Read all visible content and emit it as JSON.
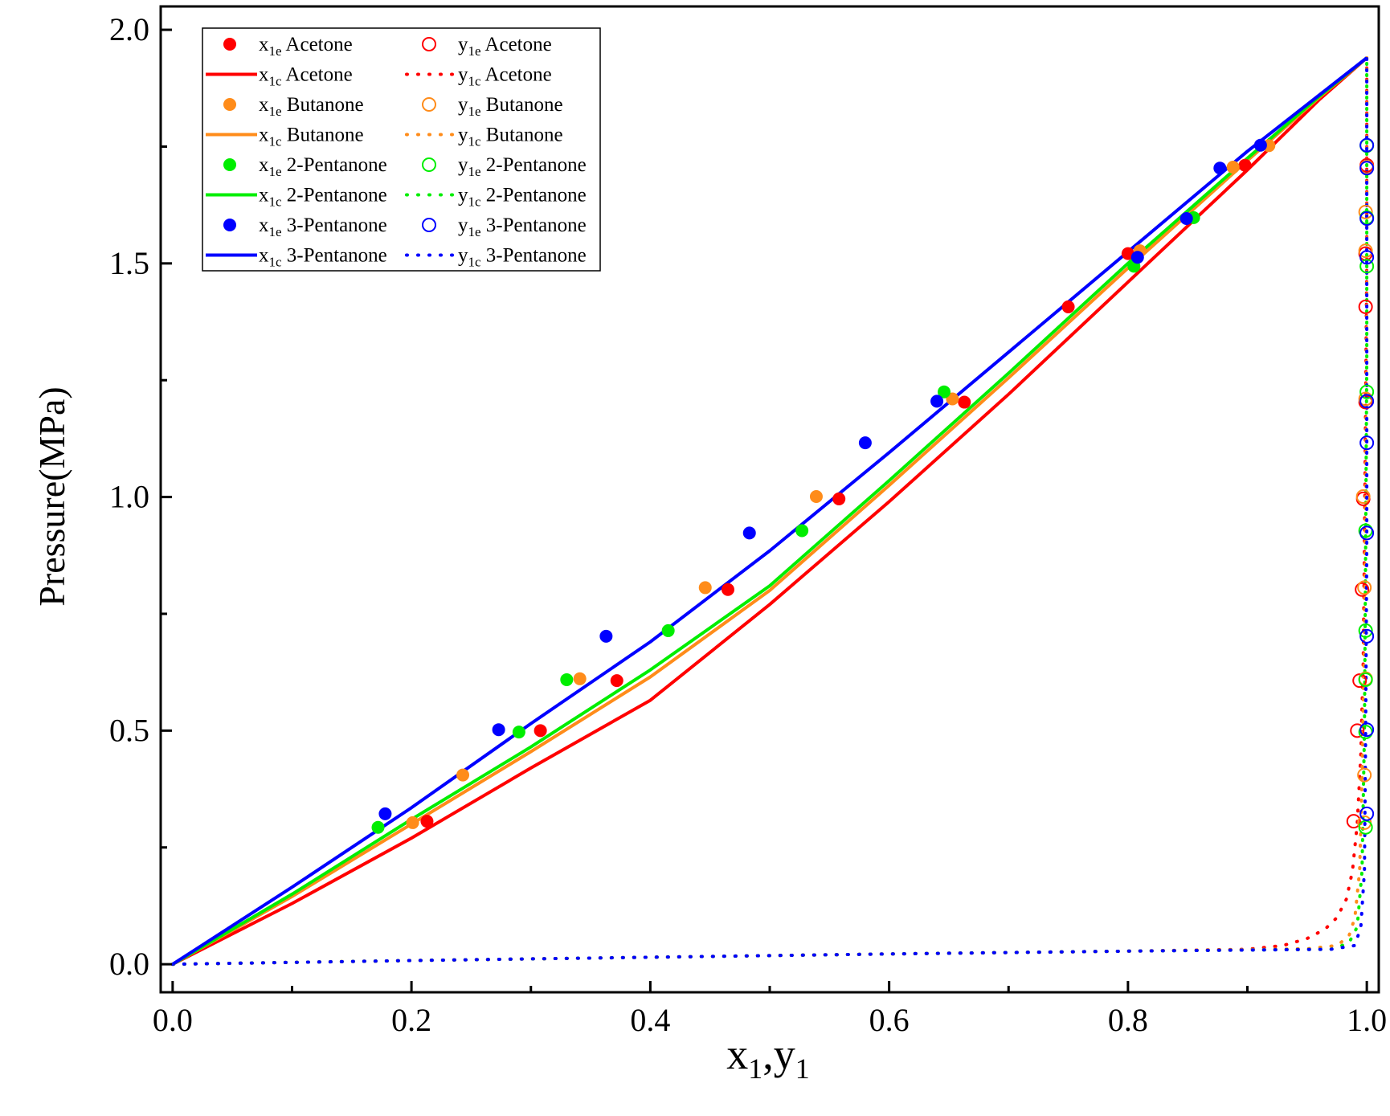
{
  "chart_data": {
    "type": "scatter",
    "title": "",
    "xlabel": {
      "main": "x",
      "sub1": "1",
      "sep": ",y",
      "sub2": "1"
    },
    "ylabel": "Pressure(MPa)",
    "xlim": [
      -0.01,
      1.01
    ],
    "ylim": [
      -0.06,
      2.05
    ],
    "xticks": [
      0.0,
      0.2,
      0.4,
      0.6,
      0.8,
      1.0
    ],
    "xtick_labels": [
      "0.0",
      "0.2",
      "0.4",
      "0.6",
      "0.8",
      "1.0"
    ],
    "yticks": [
      0.0,
      0.5,
      1.0,
      1.5,
      2.0
    ],
    "ytick_labels": [
      "0.0",
      "0.5",
      "1.0",
      "1.5",
      "2.0"
    ],
    "grid": false,
    "legend_position": "top-left",
    "colors": {
      "Acetone": "#ff0000",
      "Butanone": "#ff8c1a",
      "2-Pentanone": "#00ee00",
      "3-Pentanone": "#0000ff"
    },
    "legend": [
      {
        "col": 0,
        "row": 0,
        "marker": "filled",
        "var": "x",
        "sub": "1e",
        "label": "Acetone",
        "color": "#ff0000"
      },
      {
        "col": 0,
        "row": 1,
        "marker": "solid",
        "var": "x",
        "sub": "1c",
        "label": "Acetone",
        "color": "#ff0000"
      },
      {
        "col": 0,
        "row": 2,
        "marker": "filled",
        "var": "x",
        "sub": "1e",
        "label": "Butanone",
        "color": "#ff8c1a"
      },
      {
        "col": 0,
        "row": 3,
        "marker": "solid",
        "var": "x",
        "sub": "1c",
        "label": "Butanone",
        "color": "#ff8c1a"
      },
      {
        "col": 0,
        "row": 4,
        "marker": "filled",
        "var": "x",
        "sub": "1e",
        "label": "2-Pentanone",
        "color": "#00ee00"
      },
      {
        "col": 0,
        "row": 5,
        "marker": "solid",
        "var": "x",
        "sub": "1c",
        "label": "2-Pentanone",
        "color": "#00ee00"
      },
      {
        "col": 0,
        "row": 6,
        "marker": "filled",
        "var": "x",
        "sub": "1e",
        "label": "3-Pentanone",
        "color": "#0000ff"
      },
      {
        "col": 0,
        "row": 7,
        "marker": "solid",
        "var": "x",
        "sub": "1c",
        "label": "3-Pentanone",
        "color": "#0000ff"
      },
      {
        "col": 1,
        "row": 0,
        "marker": "open",
        "var": "y",
        "sub": "1e",
        "label": "Acetone",
        "color": "#ff0000"
      },
      {
        "col": 1,
        "row": 1,
        "marker": "dot",
        "var": "y",
        "sub": "1c",
        "label": "Acetone",
        "color": "#ff0000"
      },
      {
        "col": 1,
        "row": 2,
        "marker": "open",
        "var": "y",
        "sub": "1e",
        "label": "Butanone",
        "color": "#ff8c1a"
      },
      {
        "col": 1,
        "row": 3,
        "marker": "dot",
        "var": "y",
        "sub": "1c",
        "label": "Butanone",
        "color": "#ff8c1a"
      },
      {
        "col": 1,
        "row": 4,
        "marker": "open",
        "var": "y",
        "sub": "1e",
        "label": "2-Pentanone",
        "color": "#00ee00"
      },
      {
        "col": 1,
        "row": 5,
        "marker": "dot",
        "var": "y",
        "sub": "1c",
        "label": "2-Pentanone",
        "color": "#00ee00"
      },
      {
        "col": 1,
        "row": 6,
        "marker": "open",
        "var": "y",
        "sub": "1e",
        "label": "3-Pentanone",
        "color": "#0000ff"
      },
      {
        "col": 1,
        "row": 7,
        "marker": "dot",
        "var": "y",
        "sub": "1c",
        "label": "3-Pentanone",
        "color": "#0000ff"
      }
    ],
    "series": [
      {
        "name": "x1e Acetone",
        "kind": "filled",
        "color": "#ff0000",
        "points": [
          [
            0.213,
            0.306
          ],
          [
            0.308,
            0.5
          ],
          [
            0.372,
            0.607
          ],
          [
            0.465,
            0.802
          ],
          [
            0.558,
            0.996
          ],
          [
            0.663,
            1.203
          ],
          [
            0.75,
            1.407
          ],
          [
            0.8,
            1.521
          ],
          [
            0.898,
            1.71
          ]
        ]
      },
      {
        "name": "x1e Butanone",
        "kind": "filled",
        "color": "#ff8c1a",
        "points": [
          [
            0.201,
            0.303
          ],
          [
            0.243,
            0.405
          ],
          [
            0.341,
            0.611
          ],
          [
            0.446,
            0.806
          ],
          [
            0.539,
            1.001
          ],
          [
            0.653,
            1.21
          ],
          [
            0.81,
            1.527
          ],
          [
            0.888,
            1.706
          ],
          [
            0.918,
            1.752
          ]
        ]
      },
      {
        "name": "x1e 2-Pentanone",
        "kind": "filled",
        "color": "#00ee00",
        "points": [
          [
            0.172,
            0.293
          ],
          [
            0.29,
            0.497
          ],
          [
            0.33,
            0.609
          ],
          [
            0.415,
            0.714
          ],
          [
            0.527,
            0.928
          ],
          [
            0.646,
            1.225
          ],
          [
            0.805,
            1.494
          ],
          [
            0.855,
            1.598
          ]
        ]
      },
      {
        "name": "x1e 3-Pentanone",
        "kind": "filled",
        "color": "#0000ff",
        "points": [
          [
            0.178,
            0.322
          ],
          [
            0.273,
            0.502
          ],
          [
            0.363,
            0.702
          ],
          [
            0.483,
            0.923
          ],
          [
            0.58,
            1.116
          ],
          [
            0.64,
            1.205
          ],
          [
            0.808,
            1.513
          ],
          [
            0.849,
            1.596
          ],
          [
            0.877,
            1.704
          ],
          [
            0.911,
            1.753
          ]
        ]
      },
      {
        "name": "y1e Acetone",
        "kind": "open",
        "color": "#ff0000",
        "points": [
          [
            0.989,
            0.306
          ],
          [
            0.992,
            0.5
          ],
          [
            0.994,
            0.607
          ],
          [
            0.996,
            0.802
          ],
          [
            0.997,
            0.996
          ],
          [
            0.999,
            1.203
          ],
          [
            0.999,
            1.407
          ],
          [
            0.999,
            1.521
          ],
          [
            1.0,
            1.71
          ]
        ]
      },
      {
        "name": "y1e Butanone",
        "kind": "open",
        "color": "#ff8c1a",
        "points": [
          [
            0.998,
            0.303
          ],
          [
            0.998,
            0.405
          ],
          [
            0.999,
            0.611
          ],
          [
            0.998,
            0.806
          ],
          [
            0.997,
            1.001
          ],
          [
            0.999,
            1.21
          ],
          [
            0.999,
            1.527
          ],
          [
            0.999,
            1.61
          ],
          [
            1.0,
            1.706
          ]
        ]
      },
      {
        "name": "y1e 2-Pentanone",
        "kind": "open",
        "color": "#00ee00",
        "points": [
          [
            0.999,
            0.293
          ],
          [
            0.999,
            0.497
          ],
          [
            0.999,
            0.609
          ],
          [
            0.999,
            0.714
          ],
          [
            0.999,
            0.928
          ],
          [
            1.0,
            1.225
          ],
          [
            1.0,
            1.494
          ],
          [
            1.0,
            1.598
          ],
          [
            1.0,
            1.752
          ]
        ]
      },
      {
        "name": "y1e 3-Pentanone",
        "kind": "open",
        "color": "#0000ff",
        "points": [
          [
            1.0,
            0.322
          ],
          [
            1.0,
            0.502
          ],
          [
            1.0,
            0.702
          ],
          [
            1.0,
            0.923
          ],
          [
            1.0,
            1.116
          ],
          [
            1.0,
            1.205
          ],
          [
            1.0,
            1.513
          ],
          [
            1.0,
            1.596
          ],
          [
            1.0,
            1.704
          ],
          [
            1.0,
            1.753
          ]
        ]
      },
      {
        "name": "x1c Acetone",
        "kind": "solid",
        "color": "#ff0000",
        "points": [
          [
            0.0,
            0.0
          ],
          [
            0.1,
            0.13
          ],
          [
            0.2,
            0.27
          ],
          [
            0.3,
            0.42
          ],
          [
            0.4,
            0.565
          ],
          [
            0.5,
            0.77
          ],
          [
            0.6,
            0.99
          ],
          [
            0.7,
            1.22
          ],
          [
            0.8,
            1.46
          ],
          [
            0.9,
            1.7
          ],
          [
            0.96,
            1.85
          ],
          [
            1.0,
            1.94
          ]
        ]
      },
      {
        "name": "x1c Butanone",
        "kind": "solid",
        "color": "#ff8c1a",
        "points": [
          [
            0.0,
            0.0
          ],
          [
            0.1,
            0.145
          ],
          [
            0.2,
            0.3
          ],
          [
            0.3,
            0.455
          ],
          [
            0.4,
            0.615
          ],
          [
            0.5,
            0.8
          ],
          [
            0.6,
            1.025
          ],
          [
            0.7,
            1.255
          ],
          [
            0.8,
            1.49
          ],
          [
            0.9,
            1.72
          ],
          [
            0.96,
            1.855
          ],
          [
            1.0,
            1.94
          ]
        ]
      },
      {
        "name": "x1c 2-Pentanone",
        "kind": "solid",
        "color": "#00ee00",
        "points": [
          [
            0.0,
            0.0
          ],
          [
            0.1,
            0.15
          ],
          [
            0.2,
            0.31
          ],
          [
            0.3,
            0.465
          ],
          [
            0.4,
            0.63
          ],
          [
            0.5,
            0.81
          ],
          [
            0.6,
            1.035
          ],
          [
            0.7,
            1.265
          ],
          [
            0.8,
            1.5
          ],
          [
            0.9,
            1.725
          ],
          [
            0.96,
            1.857
          ],
          [
            1.0,
            1.94
          ]
        ]
      },
      {
        "name": "x1c 3-Pentanone",
        "kind": "solid",
        "color": "#0000ff",
        "points": [
          [
            0.0,
            0.0
          ],
          [
            0.1,
            0.165
          ],
          [
            0.2,
            0.335
          ],
          [
            0.3,
            0.515
          ],
          [
            0.4,
            0.69
          ],
          [
            0.5,
            0.885
          ],
          [
            0.6,
            1.095
          ],
          [
            0.7,
            1.31
          ],
          [
            0.8,
            1.525
          ],
          [
            0.9,
            1.74
          ],
          [
            0.96,
            1.86
          ],
          [
            1.0,
            1.94
          ]
        ]
      },
      {
        "name": "y1c Acetone",
        "kind": "dot",
        "color": "#ff0000",
        "points": [
          [
            0.0,
            0.0
          ],
          [
            0.2,
            0.008
          ],
          [
            0.4,
            0.015
          ],
          [
            0.6,
            0.022
          ],
          [
            0.8,
            0.028
          ],
          [
            0.9,
            0.032
          ],
          [
            0.93,
            0.04
          ],
          [
            0.95,
            0.055
          ],
          [
            0.965,
            0.075
          ],
          [
            0.975,
            0.1
          ],
          [
            0.983,
            0.14
          ],
          [
            0.988,
            0.2
          ],
          [
            0.992,
            0.3
          ],
          [
            0.995,
            0.45
          ],
          [
            0.997,
            0.65
          ],
          [
            0.998,
            0.9
          ],
          [
            0.999,
            1.2
          ],
          [
            1.0,
            1.5
          ],
          [
            1.0,
            1.94
          ]
        ]
      },
      {
        "name": "y1c Butanone",
        "kind": "dot",
        "color": "#ff8c1a",
        "points": [
          [
            0.0,
            0.0
          ],
          [
            0.2,
            0.008
          ],
          [
            0.4,
            0.015
          ],
          [
            0.6,
            0.022
          ],
          [
            0.8,
            0.028
          ],
          [
            0.95,
            0.033
          ],
          [
            0.975,
            0.04
          ],
          [
            0.985,
            0.06
          ],
          [
            0.99,
            0.1
          ],
          [
            0.994,
            0.2
          ],
          [
            0.996,
            0.4
          ],
          [
            0.998,
            0.7
          ],
          [
            0.999,
            1.0
          ],
          [
            1.0,
            1.4
          ],
          [
            1.0,
            1.94
          ]
        ]
      },
      {
        "name": "y1c 2-Pentanone",
        "kind": "dot",
        "color": "#00ee00",
        "points": [
          [
            0.0,
            0.0
          ],
          [
            0.2,
            0.008
          ],
          [
            0.4,
            0.015
          ],
          [
            0.6,
            0.022
          ],
          [
            0.8,
            0.028
          ],
          [
            0.97,
            0.032
          ],
          [
            0.985,
            0.045
          ],
          [
            0.992,
            0.08
          ],
          [
            0.996,
            0.2
          ],
          [
            0.998,
            0.5
          ],
          [
            0.999,
            0.9
          ],
          [
            1.0,
            1.3
          ],
          [
            1.0,
            1.94
          ]
        ]
      },
      {
        "name": "y1c 3-Pentanone",
        "kind": "dot",
        "color": "#0000ff",
        "points": [
          [
            0.0,
            0.0
          ],
          [
            0.2,
            0.008
          ],
          [
            0.4,
            0.015
          ],
          [
            0.6,
            0.022
          ],
          [
            0.8,
            0.028
          ],
          [
            0.97,
            0.032
          ],
          [
            0.99,
            0.04
          ],
          [
            0.995,
            0.08
          ],
          [
            0.998,
            0.2
          ],
          [
            0.999,
            0.5
          ],
          [
            1.0,
            0.9
          ],
          [
            1.0,
            1.3
          ],
          [
            1.0,
            1.94
          ]
        ]
      }
    ]
  }
}
